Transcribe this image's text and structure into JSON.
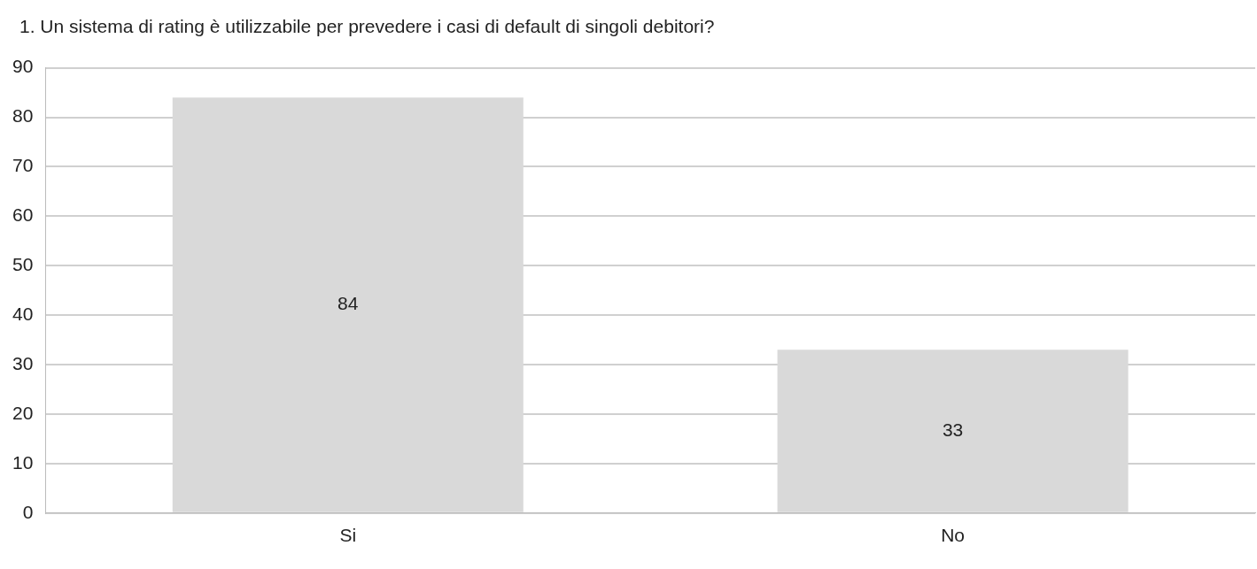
{
  "chart_data": {
    "type": "bar",
    "title": "1. Un sistema di rating è utilizzabile per prevedere i casi di default di singoli debitori?",
    "categories": [
      "Si",
      "No"
    ],
    "values": [
      84,
      33
    ],
    "color": "#d9d9d9",
    "ylim": [
      0,
      90
    ],
    "yticks": [
      0,
      10,
      20,
      30,
      40,
      50,
      60,
      70,
      80,
      90
    ],
    "grid": "y",
    "data_labels": true,
    "legend": false
  }
}
